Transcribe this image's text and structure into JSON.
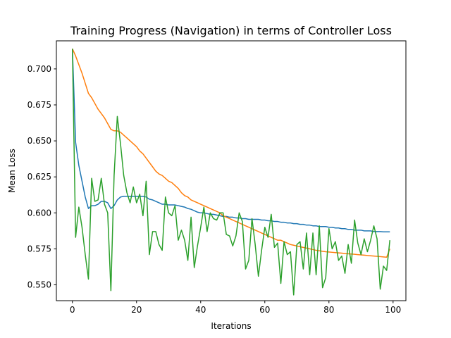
{
  "chart_data": {
    "type": "line",
    "title": "Training Progress (Navigation) in terms of Controller Loss",
    "xlabel": "Iterations",
    "ylabel": "Mean Loss",
    "xlim": [
      -5,
      104
    ],
    "ylim": [
      0.539,
      0.7195
    ],
    "xticks": [
      0,
      20,
      40,
      60,
      80,
      100
    ],
    "xtick_labels": [
      "0",
      "20",
      "40",
      "60",
      "80",
      "100"
    ],
    "yticks": [
      0.55,
      0.575,
      0.6,
      0.625,
      0.65,
      0.675,
      0.7
    ],
    "ytick_labels": [
      "0.550",
      "0.575",
      "0.600",
      "0.625",
      "0.650",
      "0.675",
      "0.700"
    ],
    "grid": false,
    "legend": "none",
    "series": [
      {
        "color": "#1f77b4",
        "x": [
          0,
          1,
          2,
          3,
          4,
          5,
          6,
          7,
          8,
          9,
          10,
          11,
          12,
          13,
          14,
          15,
          16,
          17,
          18,
          19,
          20,
          21,
          22,
          23,
          24,
          25,
          26,
          27,
          28,
          29,
          30,
          31,
          32,
          33,
          34,
          35,
          36,
          37,
          38,
          39,
          40,
          41,
          42,
          43,
          44,
          45,
          46,
          47,
          48,
          49,
          50,
          51,
          52,
          53,
          54,
          55,
          56,
          57,
          58,
          59,
          60,
          61,
          62,
          63,
          64,
          65,
          66,
          67,
          68,
          69,
          70,
          71,
          72,
          73,
          74,
          75,
          76,
          77,
          78,
          79,
          80,
          81,
          82,
          83,
          84,
          85,
          86,
          87,
          88,
          89,
          90,
          91,
          92,
          93,
          94,
          95,
          96,
          97,
          98,
          99
        ],
        "y": [
          0.714,
          0.649,
          0.633,
          0.622,
          0.611,
          0.603,
          0.605,
          0.605,
          0.606,
          0.608,
          0.608,
          0.607,
          0.603,
          0.605,
          0.609,
          0.611,
          0.6115,
          0.6115,
          0.6115,
          0.6115,
          0.6115,
          0.6115,
          0.6115,
          0.611,
          0.6095,
          0.609,
          0.608,
          0.607,
          0.606,
          0.606,
          0.6055,
          0.6055,
          0.6055,
          0.605,
          0.6045,
          0.604,
          0.603,
          0.6025,
          0.6015,
          0.6005,
          0.6,
          0.6,
          0.5995,
          0.599,
          0.599,
          0.5985,
          0.598,
          0.5975,
          0.5975,
          0.597,
          0.597,
          0.5965,
          0.5965,
          0.596,
          0.596,
          0.5955,
          0.5955,
          0.5955,
          0.5955,
          0.595,
          0.595,
          0.5945,
          0.5945,
          0.594,
          0.594,
          0.5935,
          0.5935,
          0.593,
          0.593,
          0.5925,
          0.5925,
          0.592,
          0.592,
          0.5915,
          0.5915,
          0.591,
          0.591,
          0.5905,
          0.5905,
          0.5905,
          0.59,
          0.59,
          0.5895,
          0.5895,
          0.589,
          0.589,
          0.5885,
          0.5885,
          0.588,
          0.588,
          0.588,
          0.5875,
          0.5875,
          0.5875,
          0.587,
          0.587,
          0.587,
          0.5868,
          0.5868,
          0.5868
        ]
      },
      {
        "color": "#ff7f0e",
        "x": [
          0,
          1,
          2,
          3,
          4,
          5,
          6,
          7,
          8,
          9,
          10,
          11,
          12,
          13,
          14,
          15,
          16,
          17,
          18,
          19,
          20,
          21,
          22,
          23,
          24,
          25,
          26,
          27,
          28,
          29,
          30,
          31,
          32,
          33,
          34,
          35,
          36,
          37,
          38,
          39,
          40,
          41,
          42,
          43,
          44,
          45,
          46,
          47,
          48,
          49,
          50,
          51,
          52,
          53,
          54,
          55,
          56,
          57,
          58,
          59,
          60,
          61,
          62,
          63,
          64,
          65,
          66,
          67,
          68,
          69,
          70,
          71,
          72,
          73,
          74,
          75,
          76,
          77,
          78,
          79,
          80,
          81,
          82,
          83,
          84,
          85,
          86,
          87,
          88,
          89,
          90,
          91,
          92,
          93,
          94,
          95,
          96,
          97,
          98,
          99
        ],
        "y": [
          0.714,
          0.709,
          0.703,
          0.697,
          0.69,
          0.683,
          0.68,
          0.676,
          0.672,
          0.669,
          0.666,
          0.662,
          0.658,
          0.657,
          0.657,
          0.656,
          0.654,
          0.652,
          0.65,
          0.648,
          0.646,
          0.643,
          0.641,
          0.638,
          0.635,
          0.632,
          0.629,
          0.627,
          0.626,
          0.624,
          0.622,
          0.621,
          0.619,
          0.617,
          0.614,
          0.612,
          0.611,
          0.609,
          0.608,
          0.607,
          0.606,
          0.605,
          0.604,
          0.603,
          0.602,
          0.601,
          0.6,
          0.598,
          0.597,
          0.596,
          0.595,
          0.594,
          0.593,
          0.592,
          0.591,
          0.59,
          0.589,
          0.588,
          0.587,
          0.586,
          0.585,
          0.584,
          0.583,
          0.582,
          0.581,
          0.581,
          0.58,
          0.579,
          0.578,
          0.5775,
          0.577,
          0.5765,
          0.576,
          0.5755,
          0.575,
          0.5745,
          0.574,
          0.5737,
          0.5733,
          0.573,
          0.5728,
          0.5726,
          0.5724,
          0.5722,
          0.572,
          0.5718,
          0.5716,
          0.5714,
          0.5712,
          0.571,
          0.5708,
          0.5706,
          0.5704,
          0.5702,
          0.57,
          0.5698,
          0.5696,
          0.5694,
          0.5692,
          0.575
        ]
      },
      {
        "color": "#2ca02c",
        "x": [
          0,
          1,
          2,
          3,
          4,
          5,
          6,
          7,
          8,
          9,
          10,
          11,
          12,
          13,
          14,
          15,
          16,
          17,
          18,
          19,
          20,
          21,
          22,
          23,
          24,
          25,
          26,
          27,
          28,
          29,
          30,
          31,
          32,
          33,
          34,
          35,
          36,
          37,
          38,
          39,
          40,
          41,
          42,
          43,
          44,
          45,
          46,
          47,
          48,
          49,
          50,
          51,
          52,
          53,
          54,
          55,
          56,
          57,
          58,
          59,
          60,
          61,
          62,
          63,
          64,
          65,
          66,
          67,
          68,
          69,
          70,
          71,
          72,
          73,
          74,
          75,
          76,
          77,
          78,
          79,
          80,
          81,
          82,
          83,
          84,
          85,
          86,
          87,
          88,
          89,
          90,
          91,
          92,
          93,
          94,
          95,
          96,
          97,
          98,
          99
        ],
        "y": [
          0.714,
          0.583,
          0.604,
          0.59,
          0.571,
          0.554,
          0.624,
          0.608,
          0.609,
          0.624,
          0.606,
          0.6,
          0.546,
          0.626,
          0.667,
          0.648,
          0.626,
          0.614,
          0.607,
          0.618,
          0.607,
          0.613,
          0.598,
          0.622,
          0.571,
          0.587,
          0.587,
          0.578,
          0.574,
          0.611,
          0.6,
          0.598,
          0.605,
          0.581,
          0.588,
          0.581,
          0.567,
          0.597,
          0.562,
          0.577,
          0.59,
          0.604,
          0.587,
          0.6,
          0.596,
          0.595,
          0.6,
          0.6,
          0.585,
          0.584,
          0.577,
          0.584,
          0.6,
          0.594,
          0.561,
          0.567,
          0.596,
          0.578,
          0.556,
          0.574,
          0.59,
          0.583,
          0.599,
          0.576,
          0.579,
          0.551,
          0.58,
          0.571,
          0.573,
          0.543,
          0.578,
          0.58,
          0.561,
          0.586,
          0.557,
          0.586,
          0.557,
          0.591,
          0.548,
          0.555,
          0.589,
          0.575,
          0.58,
          0.567,
          0.57,
          0.558,
          0.578,
          0.565,
          0.595,
          0.579,
          0.571,
          0.582,
          0.573,
          0.581,
          0.591,
          0.582,
          0.547,
          0.563,
          0.56,
          0.581
        ]
      }
    ]
  }
}
